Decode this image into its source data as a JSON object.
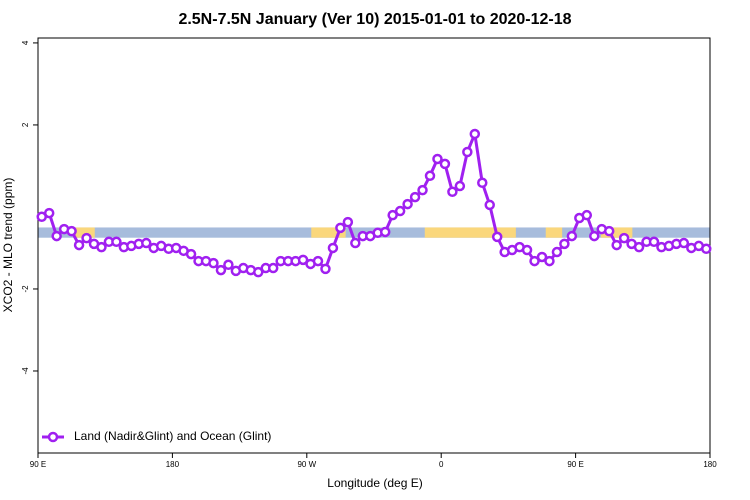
{
  "chart_data": {
    "type": "line",
    "title": "2.5N-7.5N January (Ver 10)   2015-01-01 to 2020-12-18",
    "x_label": "Longitude (deg E)",
    "y_label": "XCO2 - MLO trend (ppm)",
    "xlim": [
      90,
      540
    ],
    "ylim": [
      -6,
      4.12
    ],
    "xticks": [
      {
        "value": 90,
        "label": "90 E"
      },
      {
        "value": 180,
        "label": "180"
      },
      {
        "value": 270,
        "label": "90 W"
      },
      {
        "value": 360,
        "label": "0"
      },
      {
        "value": 450,
        "label": "90 E"
      },
      {
        "value": 540,
        "label": "180"
      }
    ],
    "yticks": [
      -4,
      -2,
      2,
      4
    ],
    "legend_position": "bottom-left",
    "surface_band": {
      "ylim": [
        -0.75,
        -0.5
      ],
      "ocean_color": "#a7bcdc",
      "land_color": "#fad77c",
      "land_spans": [
        [
          115,
          128
        ],
        [
          273,
          296
        ],
        [
          349,
          410
        ],
        [
          430,
          441
        ],
        [
          467,
          488
        ]
      ]
    },
    "x": [
      92.5,
      97.5,
      102.5,
      107.5,
      112.5,
      117.5,
      122.5,
      127.5,
      132.5,
      137.5,
      142.5,
      147.5,
      152.5,
      157.5,
      162.5,
      167.5,
      172.5,
      177.5,
      182.5,
      187.5,
      192.5,
      197.5,
      202.5,
      207.5,
      212.5,
      217.5,
      222.5,
      227.5,
      232.5,
      237.5,
      242.5,
      247.5,
      252.5,
      257.5,
      262.5,
      267.5,
      272.5,
      277.5,
      282.5,
      287.5,
      292.5,
      297.5,
      302.5,
      307.5,
      312.5,
      317.5,
      322.5,
      327.5,
      332.5,
      337.5,
      342.5,
      347.5,
      352.5,
      357.5,
      362.5,
      367.5,
      372.5,
      377.5,
      382.5,
      387.5,
      392.5,
      397.5,
      402.5,
      407.5,
      412.5,
      417.5,
      422.5,
      427.5,
      432.5,
      437.5,
      442.5,
      447.5,
      452.5,
      457.5,
      462.5,
      467.5,
      472.5,
      477.5,
      482.5,
      487.5,
      492.5,
      497.5,
      502.5,
      507.5,
      512.5,
      517.5,
      522.5,
      527.5,
      532.5,
      537.5
    ],
    "series": [
      {
        "name": "Land (Nadir&Glint) and Ocean (Glint)",
        "color": "#a020f0",
        "values": [
          -0.24,
          -0.15,
          -0.71,
          -0.54,
          -0.59,
          -0.93,
          -0.76,
          -0.9,
          -0.98,
          -0.85,
          -0.85,
          -0.98,
          -0.95,
          -0.9,
          -0.88,
          -1.0,
          -0.95,
          -1.02,
          -1.0,
          -1.07,
          -1.15,
          -1.32,
          -1.32,
          -1.37,
          -1.54,
          -1.41,
          -1.56,
          -1.49,
          -1.54,
          -1.59,
          -1.49,
          -1.49,
          -1.32,
          -1.32,
          -1.32,
          -1.29,
          -1.39,
          -1.32,
          -1.51,
          -1.0,
          -0.51,
          -0.37,
          -0.88,
          -0.71,
          -0.71,
          -0.63,
          -0.61,
          -0.2,
          -0.1,
          0.07,
          0.24,
          0.41,
          0.76,
          1.17,
          1.05,
          0.37,
          0.51,
          1.34,
          1.78,
          0.59,
          0.05,
          -0.73,
          -1.1,
          -1.05,
          -0.98,
          -1.05,
          -1.32,
          -1.22,
          -1.32,
          -1.1,
          -0.9,
          -0.71,
          -0.27,
          -0.2,
          -0.71,
          -0.54,
          -0.59,
          -0.93,
          -0.76,
          -0.9,
          -0.98,
          -0.85,
          -0.85,
          -0.98,
          -0.95,
          -0.9,
          -0.88,
          -1.0,
          -0.95,
          -1.02
        ]
      }
    ]
  }
}
